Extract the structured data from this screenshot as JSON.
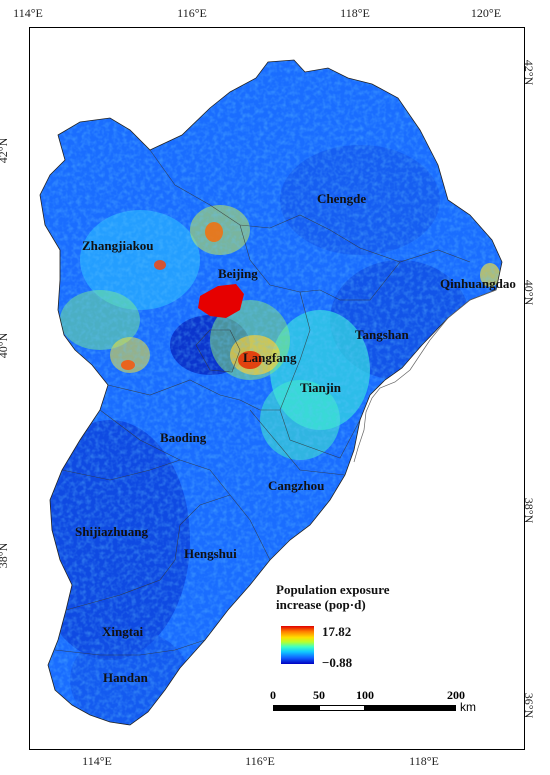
{
  "axes": {
    "top": [
      "114°E",
      "116°E",
      "118°E",
      "120°E"
    ],
    "bottom": [
      "114°E",
      "116°E",
      "118°E"
    ],
    "left": [
      "42°N",
      "40°N",
      "38°N"
    ],
    "right": [
      "42°N",
      "40°N",
      "38°N",
      "36°N"
    ]
  },
  "cities": [
    {
      "name": "Chengde"
    },
    {
      "name": "Zhangjiakou"
    },
    {
      "name": "Beijing"
    },
    {
      "name": "Qinhuangdao"
    },
    {
      "name": "Tangshan"
    },
    {
      "name": "Langfang"
    },
    {
      "name": "Tianjin"
    },
    {
      "name": "Baoding"
    },
    {
      "name": "Cangzhou"
    },
    {
      "name": "Shijiazhuang"
    },
    {
      "name": "Hengshui"
    },
    {
      "name": "Xingtai"
    },
    {
      "name": "Handan"
    }
  ],
  "legend": {
    "title_line1": "Population exposure",
    "title_line2": "increase (pop·d)",
    "max": "17.82",
    "min": "−0.88",
    "colors": [
      "#e00000",
      "#ff7a00",
      "#ffe000",
      "#b8ff2c",
      "#3cffc8",
      "#10c8ff",
      "#1060ff",
      "#0000c0"
    ]
  },
  "scale_bar": {
    "labels": [
      "0",
      "50",
      "100",
      "200"
    ],
    "unit": "km"
  }
}
